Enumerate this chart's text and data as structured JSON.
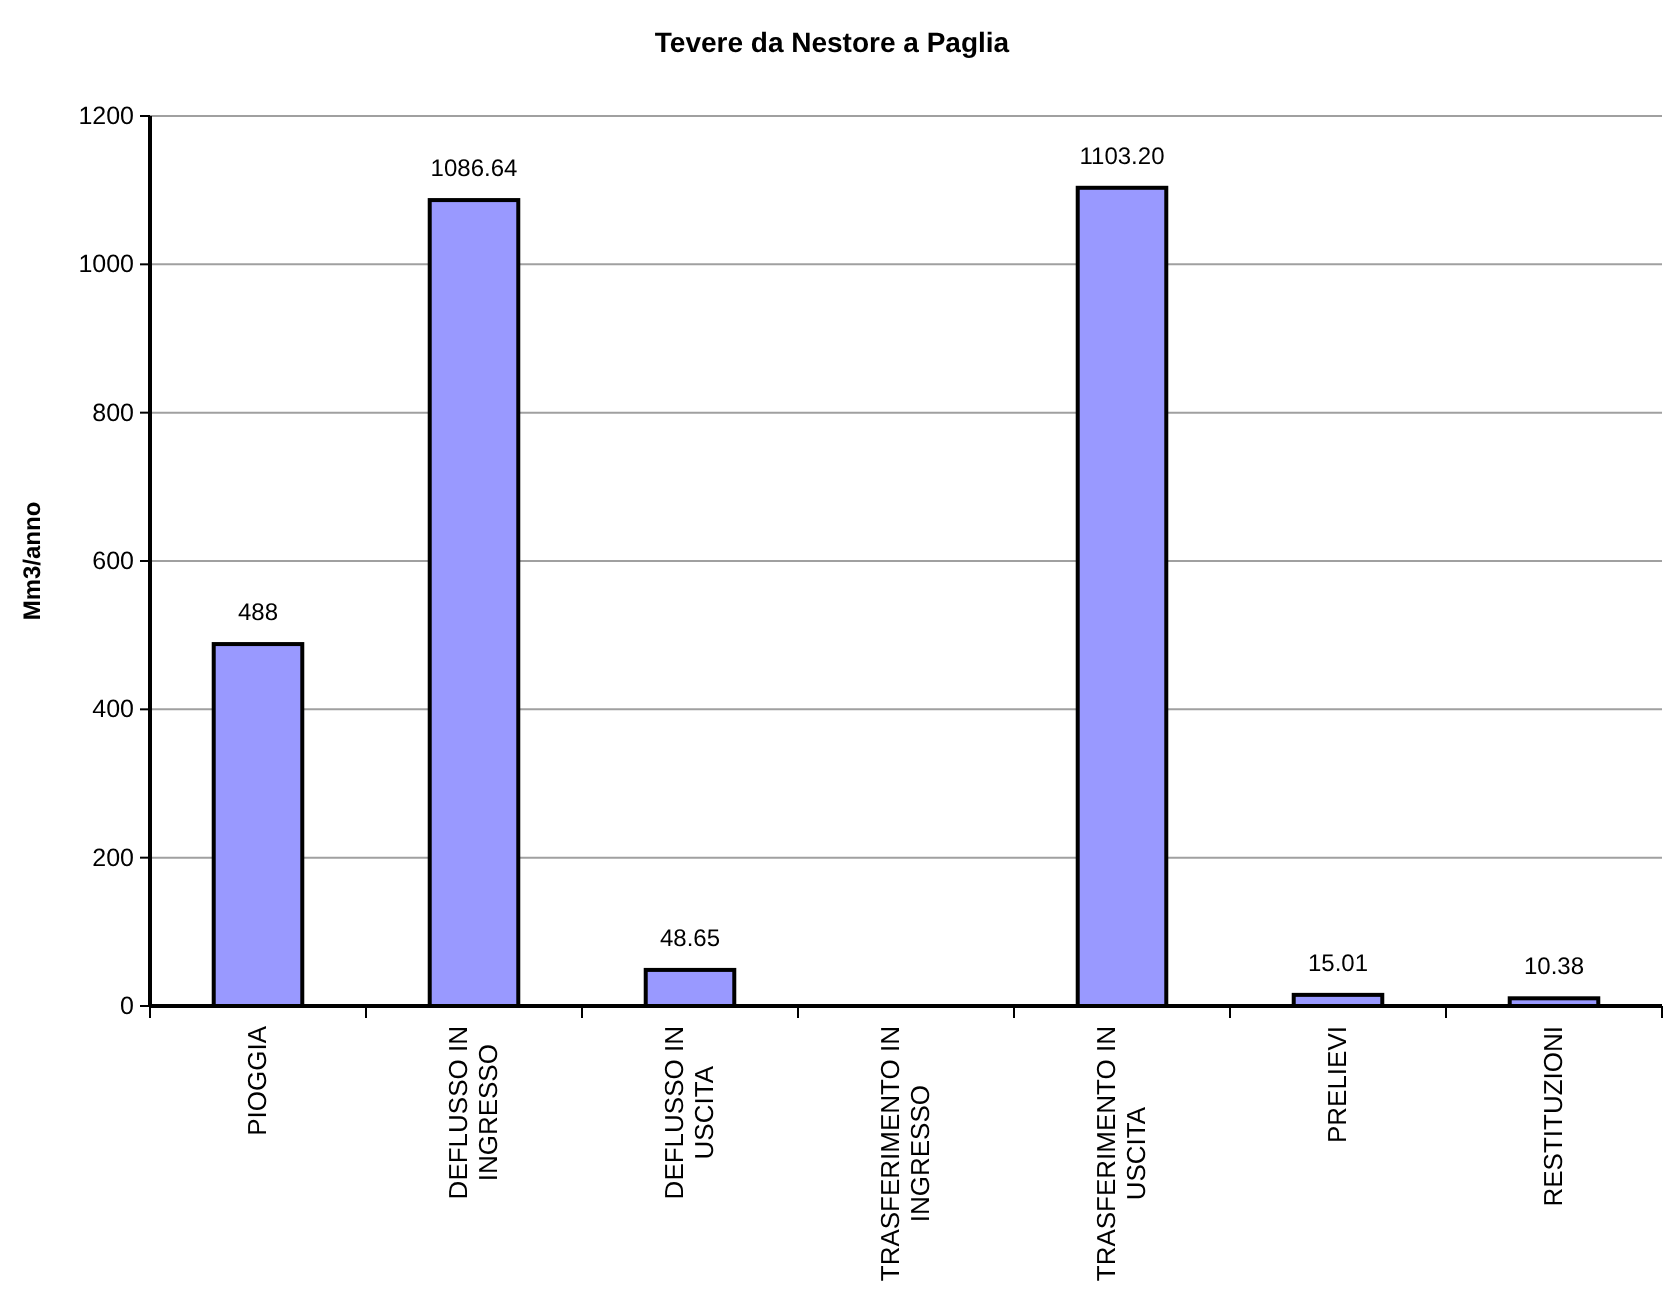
{
  "chart_data": {
    "type": "bar",
    "title": "Tevere da Nestore a Paglia",
    "ylabel": "Mm3/anno",
    "categories": [
      "PIOGGIA",
      "DEFLUSSO IN INGRESSO",
      "DEFLUSSO IN USCITA",
      "TRASFERIMENTO IN INGRESSO",
      "TRASFERIMENTO IN USCITA",
      "PRELIEVI",
      "RESTITUZIONI"
    ],
    "values": [
      488,
      1086.64,
      48.65,
      null,
      1103.2,
      15.01,
      10.38
    ],
    "value_labels": [
      "488",
      "1086.64",
      "48.65",
      null,
      "1103.20",
      "15.01",
      "10.38"
    ],
    "color": "#9999ff",
    "ylim": [
      0,
      1200
    ],
    "yticks": [
      0,
      200,
      400,
      600,
      800,
      1000,
      1200
    ],
    "grid": "y"
  }
}
